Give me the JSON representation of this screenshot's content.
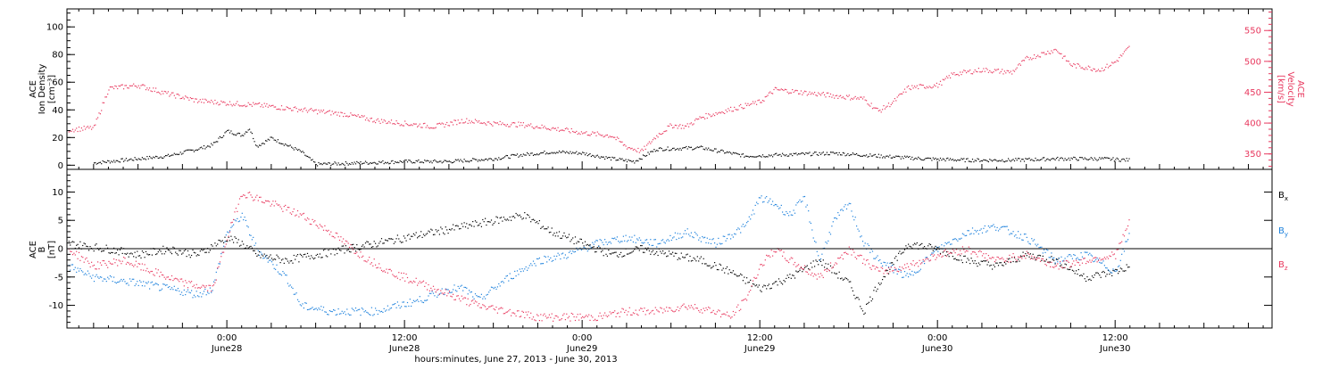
{
  "xaxis": {
    "label": "hours:minutes, June 27, 2013 - June 30, 2013",
    "ticks": [
      {
        "t": 24,
        "time": "0:00",
        "date": "June28"
      },
      {
        "t": 36,
        "time": "12:00",
        "date": "June28"
      },
      {
        "t": 48,
        "time": "0:00",
        "date": "June29"
      },
      {
        "t": 60,
        "time": "12:00",
        "date": "June29"
      },
      {
        "t": 72,
        "time": "0:00",
        "date": "June30"
      },
      {
        "t": 84,
        "time": "12:00",
        "date": "June30"
      }
    ],
    "range_hours_from_june27_0000": [
      13.2,
      94.6
    ]
  },
  "colors": {
    "black": "#000000",
    "blue": "#1e82dc",
    "red": "#e8385e"
  },
  "chart_data": [
    {
      "type": "scatter",
      "panel": "top",
      "left_axis_label": [
        "ACE",
        "Ion Density",
        "[cm⁻³]"
      ],
      "right_axis_label": [
        "ACE",
        "Velocity",
        "[km/s]"
      ],
      "left_ylim": [
        -3,
        113
      ],
      "left_ticks": [
        0,
        20,
        40,
        60,
        80,
        100
      ],
      "right_ylim": [
        325,
        585
      ],
      "right_ticks": [
        350,
        400,
        450,
        500,
        550
      ],
      "series": [
        {
          "color": "#000000",
          "axis": "left",
          "points": [
            [
              15.0,
              2
            ],
            [
              18.0,
              5
            ],
            [
              20.0,
              7
            ],
            [
              22.0,
              12
            ],
            [
              23.0,
              15
            ],
            [
              24.0,
              25
            ],
            [
              25.0,
              22
            ],
            [
              25.5,
              27
            ],
            [
              26.0,
              14
            ],
            [
              27.0,
              20
            ],
            [
              28.0,
              15
            ],
            [
              29.0,
              10
            ],
            [
              30.0,
              1
            ],
            [
              33.0,
              2
            ],
            [
              36.0,
              3
            ],
            [
              39.0,
              3
            ],
            [
              42.0,
              5
            ],
            [
              44.0,
              8
            ],
            [
              46.0,
              10
            ],
            [
              48.0,
              9
            ],
            [
              50.0,
              5
            ],
            [
              51.5,
              3
            ],
            [
              53.0,
              12
            ],
            [
              56.0,
              13
            ],
            [
              59.0,
              7
            ],
            [
              62.0,
              8
            ],
            [
              65.0,
              9
            ],
            [
              68.0,
              7
            ],
            [
              71.0,
              5
            ],
            [
              74.0,
              4
            ],
            [
              77.0,
              4
            ],
            [
              80.0,
              5
            ],
            [
              83.0,
              5
            ],
            [
              85.0,
              4
            ]
          ]
        },
        {
          "color": "#e8385e",
          "axis": "right",
          "points": [
            [
              13.3,
              390
            ],
            [
              15.0,
              393
            ],
            [
              16.0,
              457
            ],
            [
              18.0,
              462
            ],
            [
              20.0,
              448
            ],
            [
              22.0,
              437
            ],
            [
              24.0,
              433
            ],
            [
              26.0,
              430
            ],
            [
              28.0,
              425
            ],
            [
              30.0,
              420
            ],
            [
              32.0,
              415
            ],
            [
              34.0,
              405
            ],
            [
              36.0,
              400
            ],
            [
              38.0,
              395
            ],
            [
              40.0,
              405
            ],
            [
              42.0,
              400
            ],
            [
              44.0,
              398
            ],
            [
              46.0,
              392
            ],
            [
              48.0,
              385
            ],
            [
              50.0,
              380
            ],
            [
              51.0,
              362
            ],
            [
              52.0,
              355
            ],
            [
              53.0,
              380
            ],
            [
              54.0,
              397
            ],
            [
              55.0,
              395
            ],
            [
              56.0,
              410
            ],
            [
              58.0,
              423
            ],
            [
              60.0,
              435
            ],
            [
              61.0,
              455
            ],
            [
              63.0,
              450
            ],
            [
              65.0,
              445
            ],
            [
              67.0,
              440
            ],
            [
              68.0,
              420
            ],
            [
              69.0,
              435
            ],
            [
              70.0,
              458
            ],
            [
              72.0,
              462
            ],
            [
              73.0,
              480
            ],
            [
              75.0,
              487
            ],
            [
              77.0,
              483
            ],
            [
              78.0,
              505
            ],
            [
              80.0,
              520
            ],
            [
              81.0,
              495
            ],
            [
              83.0,
              487
            ],
            [
              84.0,
              500
            ],
            [
              85.0,
              525
            ]
          ]
        }
      ]
    },
    {
      "type": "scatter",
      "panel": "bottom",
      "left_axis_label": [
        "ACE",
        "B",
        "[nT]"
      ],
      "ylim": [
        -14,
        14
      ],
      "ticks": [
        -10,
        -5,
        0,
        5,
        10
      ],
      "zero_line": true,
      "legend": [
        {
          "label": "B",
          "sub": "x",
          "color": "#000000"
        },
        {
          "label": "B",
          "sub": "y",
          "color": "#1e82dc"
        },
        {
          "label": "B",
          "sub": "z",
          "color": "#e8385e"
        }
      ],
      "series": [
        {
          "color": "#000000",
          "points": [
            [
              13.3,
              1
            ],
            [
              16.0,
              0
            ],
            [
              18.0,
              -1
            ],
            [
              20.0,
              0
            ],
            [
              22.0,
              -1
            ],
            [
              24.0,
              2
            ],
            [
              25.0,
              1
            ],
            [
              26.0,
              -1
            ],
            [
              28.0,
              -2
            ],
            [
              30.0,
              -1
            ],
            [
              32.0,
              0
            ],
            [
              34.0,
              1
            ],
            [
              36.0,
              2
            ],
            [
              38.0,
              3
            ],
            [
              40.0,
              4
            ],
            [
              42.0,
              5
            ],
            [
              44.0,
              6
            ],
            [
              46.0,
              3
            ],
            [
              48.0,
              1
            ],
            [
              50.0,
              -1
            ],
            [
              52.0,
              0
            ],
            [
              54.0,
              -1
            ],
            [
              56.0,
              -2
            ],
            [
              58.0,
              -4
            ],
            [
              60.0,
              -7
            ],
            [
              62.0,
              -5
            ],
            [
              64.0,
              -2
            ],
            [
              66.0,
              -6
            ],
            [
              67.0,
              -11
            ],
            [
              68.0,
              -6
            ],
            [
              70.0,
              1
            ],
            [
              72.0,
              0
            ],
            [
              74.0,
              -2
            ],
            [
              76.0,
              -3
            ],
            [
              78.0,
              -1
            ],
            [
              80.0,
              -2
            ],
            [
              82.0,
              -5
            ],
            [
              84.0,
              -4
            ],
            [
              85.0,
              -3
            ]
          ]
        },
        {
          "color": "#1e82dc",
          "points": [
            [
              13.3,
              -3
            ],
            [
              15.0,
              -5
            ],
            [
              18.0,
              -6
            ],
            [
              20.0,
              -7
            ],
            [
              22.0,
              -8
            ],
            [
              23.0,
              -7
            ],
            [
              24.0,
              3
            ],
            [
              25.0,
              6
            ],
            [
              26.0,
              0
            ],
            [
              28.0,
              -5
            ],
            [
              29.0,
              -10
            ],
            [
              31.0,
              -11
            ],
            [
              34.0,
              -11
            ],
            [
              37.0,
              -9
            ],
            [
              39.0,
              -7
            ],
            [
              40.0,
              -7
            ],
            [
              41.0,
              -9
            ],
            [
              43.0,
              -5
            ],
            [
              45.0,
              -2
            ],
            [
              47.0,
              -1
            ],
            [
              49.0,
              1
            ],
            [
              51.0,
              2
            ],
            [
              53.0,
              1
            ],
            [
              55.0,
              3
            ],
            [
              57.0,
              1
            ],
            [
              59.0,
              4
            ],
            [
              60.0,
              9
            ],
            [
              61.0,
              8
            ],
            [
              62.0,
              6
            ],
            [
              63.0,
              9
            ],
            [
              64.0,
              -2
            ],
            [
              65.0,
              5
            ],
            [
              66.0,
              8
            ],
            [
              67.0,
              1
            ],
            [
              68.0,
              -2
            ],
            [
              70.0,
              -5
            ],
            [
              72.0,
              0
            ],
            [
              74.0,
              3
            ],
            [
              76.0,
              4
            ],
            [
              78.0,
              2
            ],
            [
              80.0,
              -2
            ],
            [
              82.0,
              -1
            ],
            [
              84.0,
              -4
            ],
            [
              85.0,
              3
            ]
          ]
        },
        {
          "color": "#e8385e",
          "points": [
            [
              13.3,
              0
            ],
            [
              15.0,
              -3
            ],
            [
              17.0,
              -2
            ],
            [
              19.0,
              -4
            ],
            [
              21.0,
              -6
            ],
            [
              23.0,
              -7
            ],
            [
              24.0,
              2
            ],
            [
              25.0,
              10
            ],
            [
              26.0,
              9
            ],
            [
              27.0,
              8
            ],
            [
              29.0,
              6
            ],
            [
              31.0,
              3
            ],
            [
              33.0,
              -1
            ],
            [
              35.0,
              -4
            ],
            [
              37.0,
              -6
            ],
            [
              39.0,
              -8
            ],
            [
              41.0,
              -10
            ],
            [
              43.0,
              -11
            ],
            [
              45.0,
              -12
            ],
            [
              47.0,
              -12
            ],
            [
              49.0,
              -12
            ],
            [
              51.0,
              -11
            ],
            [
              53.0,
              -11
            ],
            [
              55.0,
              -10
            ],
            [
              57.0,
              -11
            ],
            [
              58.0,
              -12
            ],
            [
              59.0,
              -9
            ],
            [
              60.0,
              -3
            ],
            [
              61.0,
              0
            ],
            [
              62.0,
              -2
            ],
            [
              64.0,
              -5
            ],
            [
              66.0,
              0
            ],
            [
              68.0,
              -4
            ],
            [
              70.0,
              -3
            ],
            [
              72.0,
              -1
            ],
            [
              74.0,
              0
            ],
            [
              76.0,
              -2
            ],
            [
              78.0,
              -1
            ],
            [
              80.0,
              -3
            ],
            [
              82.0,
              -2
            ],
            [
              84.0,
              -1
            ],
            [
              85.0,
              5
            ]
          ]
        }
      ]
    }
  ]
}
